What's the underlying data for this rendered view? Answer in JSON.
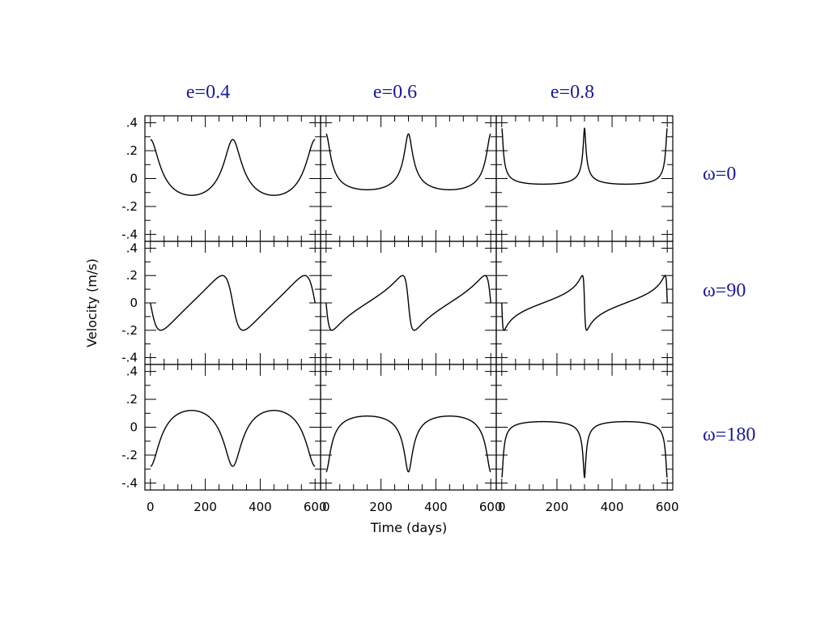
{
  "chart_data": {
    "type": "line",
    "title": "",
    "xlabel": "Time (days)",
    "ylabel": "Velocity (m/s)",
    "xlim": [
      -20,
      620
    ],
    "ylim": [
      -0.45,
      0.45
    ],
    "x_tick_labels": [
      "0",
      "200",
      "400",
      "600"
    ],
    "x_tick_values": [
      0,
      200,
      400,
      600
    ],
    "y_tick_labels": [
      ".4",
      ".2",
      "0",
      "-.2",
      "-.4"
    ],
    "y_tick_values": [
      0.4,
      0.2,
      0,
      -0.2,
      -0.4
    ],
    "period_days": 300,
    "amplitude": 0.2,
    "periastron_time_days": 300,
    "eccentricity_labels": [
      "e=0.4",
      "e=0.6",
      "e=0.8"
    ],
    "eccentricities": [
      0.4,
      0.6,
      0.8
    ],
    "omega_labels": [
      "ω=0",
      "ω=90",
      "ω=180"
    ],
    "omegas_deg": [
      0,
      90,
      180
    ],
    "grid": false,
    "colors": {
      "curve": "#000000",
      "annotation": "#1a1a99"
    }
  }
}
